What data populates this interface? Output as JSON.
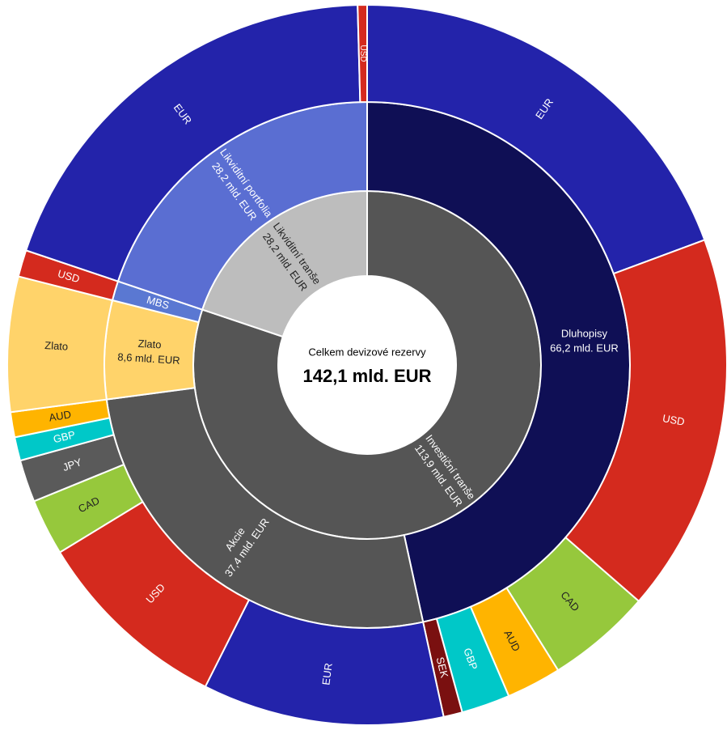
{
  "chart_data": {
    "type": "sunburst",
    "title": "Celkem devizové rezervy",
    "total": 142.1,
    "total_label": "142,1 mld. EUR",
    "nodes": [
      {
        "name": "Investiční tranše",
        "value": 113.9,
        "value_label": "113,9 mld. EUR",
        "color": "#555555",
        "children": [
          {
            "name": "Dluhopisy",
            "value": 66.2,
            "value_label": "66,2 mld. EUR",
            "color": "#0f0f55",
            "children": [
              {
                "name": "EUR",
                "value": 27.5,
                "color": "#2323aa"
              },
              {
                "name": "USD",
                "value": 24.2,
                "color": "#d42a1e"
              },
              {
                "name": "CAD",
                "value": 6.7,
                "color": "#96c83c"
              },
              {
                "name": "AUD",
                "value": 3.5,
                "color": "#ffb400"
              },
              {
                "name": "GBP",
                "value": 3.1,
                "color": "#00c8c8"
              },
              {
                "name": "SEK",
                "value": 1.2,
                "color": "#7a1010"
              }
            ]
          },
          {
            "name": "Akcie",
            "value": 37.4,
            "value_label": "37,4 mld. EUR",
            "color": "#555555",
            "children": [
              {
                "name": "EUR",
                "value": 15.4,
                "color": "#2323aa"
              },
              {
                "name": "USD",
                "value": 12.6,
                "color": "#d42a1e"
              },
              {
                "name": "CAD",
                "value": 3.6,
                "color": "#96c83c"
              },
              {
                "name": "JPY",
                "value": 2.7,
                "color": "#5a5a5a"
              },
              {
                "name": "GBP",
                "value": 1.5,
                "color": "#00c8c8"
              },
              {
                "name": "AUD",
                "value": 1.6,
                "color": "#ffb400"
              }
            ]
          },
          {
            "name": "Zlato",
            "value": 8.6,
            "value_label": "8,6 mld. EUR",
            "color": "#ffd36a",
            "children": [
              {
                "name": "Zlato",
                "value": 8.6,
                "color": "#ffd36a"
              }
            ]
          },
          {
            "name": "MBS",
            "value": 1.7,
            "color": "#5a78d2",
            "children": [
              {
                "name": "USD",
                "value": 1.7,
                "color": "#d42a1e"
              }
            ]
          }
        ]
      },
      {
        "name": "Likviditní tranše",
        "value": 28.2,
        "value_label": "28,2 mld. EUR",
        "color": "#bdbdbd",
        "children": [
          {
            "name": "Likviditní portfolia",
            "value": 28.2,
            "value_label": "28,2 mld. EUR",
            "color": "#5a6ed2",
            "children": [
              {
                "name": "EUR",
                "value": 27.6,
                "color": "#2323aa"
              },
              {
                "name": "USD",
                "value": 0.6,
                "color": "#d42a1e"
              }
            ]
          }
        ]
      }
    ]
  }
}
